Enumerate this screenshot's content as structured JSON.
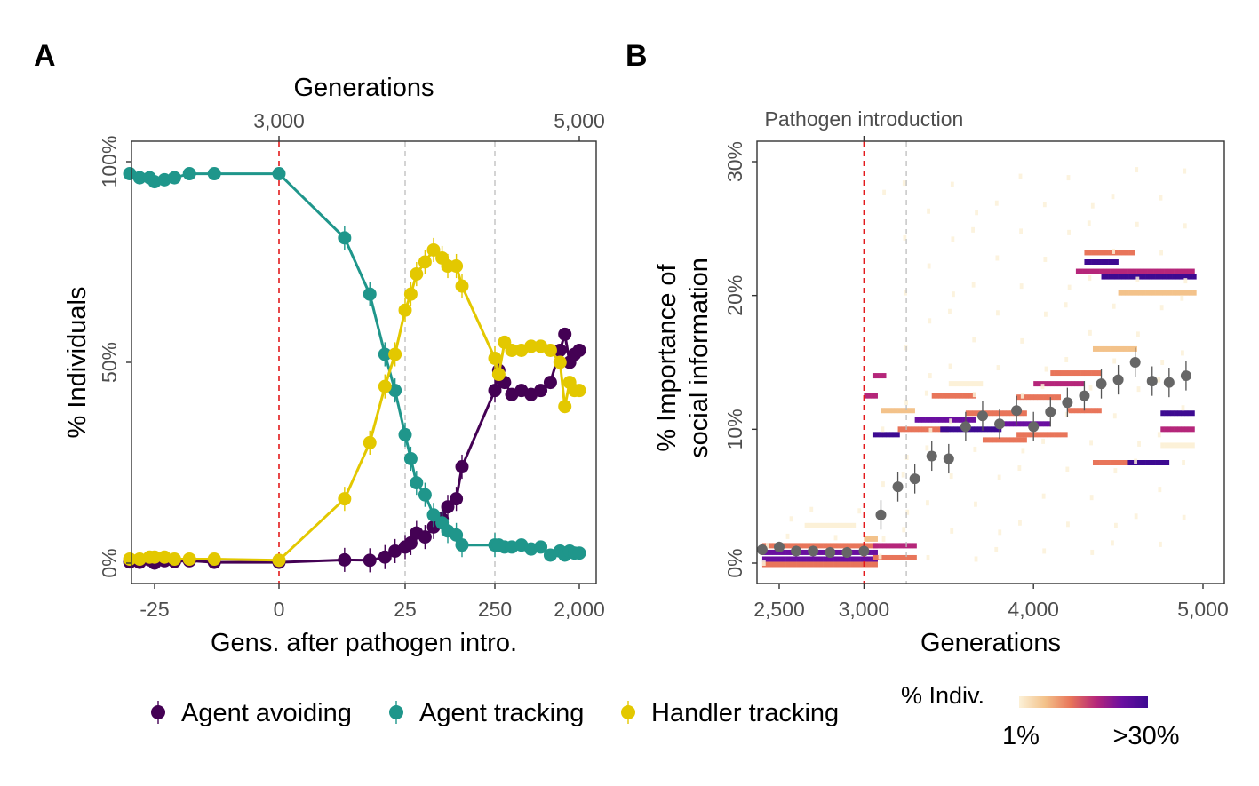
{
  "chart_data": [
    {
      "panel": "A",
      "type": "line",
      "title": "",
      "xlabel": "Gens. after pathogen intro.",
      "ylabel": "% Individuals",
      "secondary_xlabel": "Generations",
      "xticks": [
        "-25",
        "0",
        "25",
        "250",
        "2,000"
      ],
      "secondary_xticks": [
        "3,000",
        "5,000"
      ],
      "yticks": [
        "0%",
        "50%",
        "100%"
      ],
      "ylim": [
        0,
        1
      ],
      "grid": false,
      "legend_position": "bottom",
      "reference_lines": [
        {
          "at": "0",
          "color": "#e31a1c",
          "style": "dashed",
          "label": "pathogen introduction"
        },
        {
          "at": "25",
          "color": "#bdbdbd",
          "style": "dashed"
        },
        {
          "at": "250",
          "color": "#bdbdbd",
          "style": "dashed"
        }
      ],
      "series": [
        {
          "name": "Agent avoiding",
          "color": "#440154",
          "points": [
            {
              "x": -30,
              "y": 0.003
            },
            {
              "x": -28,
              "y": 0.002
            },
            {
              "x": -26,
              "y": 0.008
            },
            {
              "x": -25,
              "y": 0.0
            },
            {
              "x": -23,
              "y": 0.006
            },
            {
              "x": -21,
              "y": 0.004
            },
            {
              "x": -18,
              "y": 0.006
            },
            {
              "x": -13,
              "y": 0.002
            },
            {
              "x": 0,
              "y": 0.002
            },
            {
              "x": 13,
              "y": 0.008
            },
            {
              "x": 18,
              "y": 0.007
            },
            {
              "x": 21,
              "y": 0.015
            },
            {
              "x": 23,
              "y": 0.03
            },
            {
              "x": 25,
              "y": 0.04
            },
            {
              "x": 27,
              "y": 0.05
            },
            {
              "x": 29,
              "y": 0.075
            },
            {
              "x": 32,
              "y": 0.065
            },
            {
              "x": 35,
              "y": 0.09
            },
            {
              "x": 38,
              "y": 0.11
            },
            {
              "x": 40,
              "y": 0.14
            },
            {
              "x": 43,
              "y": 0.16
            },
            {
              "x": 45,
              "y": 0.24
            },
            {
              "x": 250,
              "y": 0.43
            },
            {
              "x": 330,
              "y": 0.48
            },
            {
              "x": 450,
              "y": 0.45
            },
            {
              "x": 600,
              "y": 0.42
            },
            {
              "x": 800,
              "y": 0.43
            },
            {
              "x": 1000,
              "y": 0.42
            },
            {
              "x": 1200,
              "y": 0.43
            },
            {
              "x": 1400,
              "y": 0.45
            },
            {
              "x": 1600,
              "y": 0.53
            },
            {
              "x": 1700,
              "y": 0.57
            },
            {
              "x": 1800,
              "y": 0.5
            },
            {
              "x": 1900,
              "y": 0.52
            },
            {
              "x": 2000,
              "y": 0.53
            }
          ]
        },
        {
          "name": "Agent tracking",
          "color": "#1f968b",
          "points": [
            {
              "x": -30,
              "y": 0.97
            },
            {
              "x": -28,
              "y": 0.96
            },
            {
              "x": -26,
              "y": 0.96
            },
            {
              "x": -25,
              "y": 0.95
            },
            {
              "x": -23,
              "y": 0.955
            },
            {
              "x": -21,
              "y": 0.96
            },
            {
              "x": -18,
              "y": 0.97
            },
            {
              "x": -13,
              "y": 0.97
            },
            {
              "x": 0,
              "y": 0.97
            },
            {
              "x": 13,
              "y": 0.81
            },
            {
              "x": 18,
              "y": 0.67
            },
            {
              "x": 21,
              "y": 0.52
            },
            {
              "x": 23,
              "y": 0.43
            },
            {
              "x": 25,
              "y": 0.32
            },
            {
              "x": 27,
              "y": 0.26
            },
            {
              "x": 29,
              "y": 0.2
            },
            {
              "x": 32,
              "y": 0.17
            },
            {
              "x": 35,
              "y": 0.12
            },
            {
              "x": 38,
              "y": 0.1
            },
            {
              "x": 40,
              "y": 0.08
            },
            {
              "x": 43,
              "y": 0.07
            },
            {
              "x": 45,
              "y": 0.045
            },
            {
              "x": 250,
              "y": 0.045
            },
            {
              "x": 330,
              "y": 0.045
            },
            {
              "x": 450,
              "y": 0.04
            },
            {
              "x": 600,
              "y": 0.04
            },
            {
              "x": 800,
              "y": 0.045
            },
            {
              "x": 1000,
              "y": 0.035
            },
            {
              "x": 1200,
              "y": 0.04
            },
            {
              "x": 1400,
              "y": 0.02
            },
            {
              "x": 1600,
              "y": 0.03
            },
            {
              "x": 1700,
              "y": 0.02
            },
            {
              "x": 1800,
              "y": 0.03
            },
            {
              "x": 1900,
              "y": 0.025
            },
            {
              "x": 2000,
              "y": 0.025
            }
          ]
        },
        {
          "name": "Handler tracking",
          "color": "#e3c800",
          "points": [
            {
              "x": -30,
              "y": 0.01
            },
            {
              "x": -28,
              "y": 0.01
            },
            {
              "x": -26,
              "y": 0.015
            },
            {
              "x": -25,
              "y": 0.015
            },
            {
              "x": -23,
              "y": 0.015
            },
            {
              "x": -21,
              "y": 0.01
            },
            {
              "x": -18,
              "y": 0.01
            },
            {
              "x": -13,
              "y": 0.01
            },
            {
              "x": 0,
              "y": 0.007
            },
            {
              "x": 13,
              "y": 0.16
            },
            {
              "x": 18,
              "y": 0.3
            },
            {
              "x": 21,
              "y": 0.44
            },
            {
              "x": 23,
              "y": 0.52
            },
            {
              "x": 25,
              "y": 0.63
            },
            {
              "x": 27,
              "y": 0.67
            },
            {
              "x": 29,
              "y": 0.72
            },
            {
              "x": 32,
              "y": 0.75
            },
            {
              "x": 35,
              "y": 0.78
            },
            {
              "x": 38,
              "y": 0.76
            },
            {
              "x": 40,
              "y": 0.74
            },
            {
              "x": 43,
              "y": 0.74
            },
            {
              "x": 45,
              "y": 0.69
            },
            {
              "x": 250,
              "y": 0.51
            },
            {
              "x": 330,
              "y": 0.47
            },
            {
              "x": 450,
              "y": 0.55
            },
            {
              "x": 600,
              "y": 0.53
            },
            {
              "x": 800,
              "y": 0.53
            },
            {
              "x": 1000,
              "y": 0.54
            },
            {
              "x": 1200,
              "y": 0.54
            },
            {
              "x": 1400,
              "y": 0.53
            },
            {
              "x": 1600,
              "y": 0.5
            },
            {
              "x": 1700,
              "y": 0.39
            },
            {
              "x": 1800,
              "y": 0.45
            },
            {
              "x": 1900,
              "y": 0.43
            },
            {
              "x": 2000,
              "y": 0.43
            }
          ]
        }
      ]
    },
    {
      "panel": "B",
      "type": "heatmap",
      "title": "",
      "xlabel": "Generations",
      "ylabel": "% Importance of social information",
      "ylabel_lines": [
        "% Importance of",
        "social information"
      ],
      "annotation": "Pathogen introduction",
      "xticks": [
        "2,500",
        "3,000",
        "4,000",
        "5,000"
      ],
      "yticks": [
        "0%",
        "10%",
        "20%",
        "30%"
      ],
      "xlim": [
        2380,
        5120
      ],
      "ylim": [
        -0.015,
        0.315
      ],
      "grid": false,
      "reference_lines": [
        {
          "at": 3000,
          "color": "#e31a1c",
          "style": "dashed"
        },
        {
          "at": 3250,
          "color": "#bdbdbd",
          "style": "dashed"
        }
      ],
      "legend": {
        "title": "% Indiv.",
        "low_label": "1%",
        "high_label": ">30%",
        "colors": [
          "#fcf1d8",
          "#f3c28a",
          "#e8755a",
          "#b5267a",
          "#6a0fa0",
          "#3d0a91"
        ]
      },
      "mean_points": [
        {
          "x": 2400,
          "y": 0.01
        },
        {
          "x": 2500,
          "y": 0.012
        },
        {
          "x": 2600,
          "y": 0.009
        },
        {
          "x": 2700,
          "y": 0.009
        },
        {
          "x": 2800,
          "y": 0.008
        },
        {
          "x": 2900,
          "y": 0.008
        },
        {
          "x": 3000,
          "y": 0.009
        },
        {
          "x": 3100,
          "y": 0.036
        },
        {
          "x": 3200,
          "y": 0.057
        },
        {
          "x": 3300,
          "y": 0.063
        },
        {
          "x": 3400,
          "y": 0.08
        },
        {
          "x": 3500,
          "y": 0.078
        },
        {
          "x": 3600,
          "y": 0.102
        },
        {
          "x": 3700,
          "y": 0.11
        },
        {
          "x": 3800,
          "y": 0.104
        },
        {
          "x": 3900,
          "y": 0.114
        },
        {
          "x": 4000,
          "y": 0.102
        },
        {
          "x": 4100,
          "y": 0.113
        },
        {
          "x": 4200,
          "y": 0.12
        },
        {
          "x": 4300,
          "y": 0.125
        },
        {
          "x": 4400,
          "y": 0.134
        },
        {
          "x": 4500,
          "y": 0.137
        },
        {
          "x": 4600,
          "y": 0.15
        },
        {
          "x": 4700,
          "y": 0.136
        },
        {
          "x": 4800,
          "y": 0.135
        },
        {
          "x": 4900,
          "y": 0.14
        }
      ],
      "heat_bands": [
        {
          "x0": 2400,
          "x1": 3080,
          "y": 0.003,
          "level": 5
        },
        {
          "x0": 2400,
          "x1": 3080,
          "y": 0.008,
          "level": 4
        },
        {
          "x0": 2400,
          "x1": 3080,
          "y": 0.013,
          "level": 2
        },
        {
          "x0": 2400,
          "x1": 3080,
          "y": -0.001,
          "level": 2
        },
        {
          "x0": 3000,
          "x1": 3080,
          "y": 0.018,
          "level": 1
        },
        {
          "x0": 2650,
          "x1": 2950,
          "y": 0.028,
          "level": 1
        },
        {
          "x0": 3050,
          "x1": 3300,
          "y": 0.013,
          "level": 3
        },
        {
          "x0": 3050,
          "x1": 3300,
          "y": 0.004,
          "level": 2
        },
        {
          "x0": 3050,
          "x1": 3130,
          "y": 0.14,
          "level": 3
        },
        {
          "x0": 3000,
          "x1": 3080,
          "y": 0.125,
          "level": 3
        },
        {
          "x0": 3100,
          "x1": 3300,
          "y": 0.114,
          "level": 2
        },
        {
          "x0": 3050,
          "x1": 3200,
          "y": 0.096,
          "level": 5
        },
        {
          "x0": 3200,
          "x1": 3500,
          "y": 0.1,
          "level": 2
        },
        {
          "x0": 3300,
          "x1": 3650,
          "y": 0.107,
          "level": 4
        },
        {
          "x0": 3450,
          "x1": 3800,
          "y": 0.1,
          "level": 5
        },
        {
          "x0": 3600,
          "x1": 3950,
          "y": 0.112,
          "level": 3
        },
        {
          "x0": 3800,
          "x1": 4100,
          "y": 0.104,
          "level": 4
        },
        {
          "x0": 3900,
          "x1": 4200,
          "y": 0.096,
          "level": 2
        },
        {
          "x0": 3700,
          "x1": 3950,
          "y": 0.092,
          "level": 2
        },
        {
          "x0": 3400,
          "x1": 3650,
          "y": 0.125,
          "level": 2
        },
        {
          "x0": 3500,
          "x1": 3700,
          "y": 0.134,
          "level": 1
        },
        {
          "x0": 3900,
          "x1": 4150,
          "y": 0.124,
          "level": 2
        },
        {
          "x0": 4000,
          "x1": 4300,
          "y": 0.134,
          "level": 3
        },
        {
          "x0": 4100,
          "x1": 4400,
          "y": 0.142,
          "level": 2
        },
        {
          "x0": 4200,
          "x1": 4400,
          "y": 0.114,
          "level": 2
        },
        {
          "x0": 4350,
          "x1": 4600,
          "y": 0.16,
          "level": 2
        },
        {
          "x0": 4250,
          "x1": 4950,
          "y": 0.218,
          "level": 3
        },
        {
          "x0": 4300,
          "x1": 4500,
          "y": 0.225,
          "level": 5
        },
        {
          "x0": 4400,
          "x1": 4950,
          "y": 0.214,
          "level": 5
        },
        {
          "x0": 4300,
          "x1": 4600,
          "y": 0.232,
          "level": 2
        },
        {
          "x0": 4500,
          "x1": 4950,
          "y": 0.202,
          "level": 2
        },
        {
          "x0": 4500,
          "x1": 4800,
          "y": 0.075,
          "level": 5
        },
        {
          "x0": 4350,
          "x1": 4550,
          "y": 0.075,
          "level": 2
        },
        {
          "x0": 4750,
          "x1": 4950,
          "y": 0.112,
          "level": 5
        },
        {
          "x0": 4750,
          "x1": 4950,
          "y": 0.1,
          "level": 3
        },
        {
          "x0": 4750,
          "x1": 4950,
          "y": 0.088,
          "level": 1
        }
      ]
    }
  ]
}
